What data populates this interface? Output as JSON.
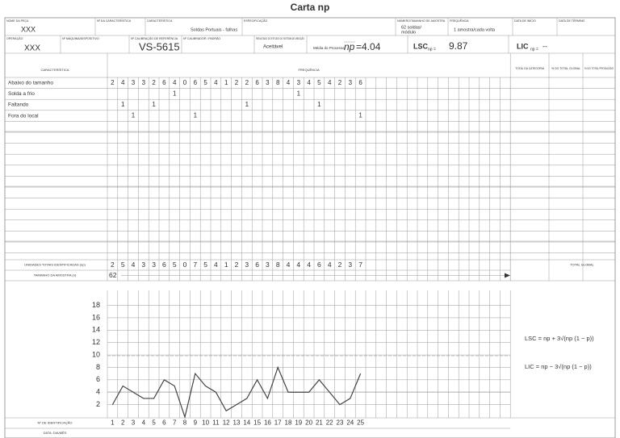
{
  "title": "Carta np",
  "header": {
    "part_name": {
      "label": "NOME DA PEÇA",
      "value": "XXX"
    },
    "char_no": {
      "label": "Nº DA CARACTERÍSTICA"
    },
    "characteristic": {
      "label": "CARACTERÍSTICA",
      "value": "Soldas Portuais - falhas"
    },
    "spec": {
      "label": "ESPECIFICAÇÃO"
    },
    "sample": {
      "label": "NÚMERO/TAMANHO DE AMOSTRA",
      "value": [
        "62 soldas/",
        "módulo"
      ]
    },
    "frequency": {
      "label": "FREQUÊNCIA",
      "value": "1 amostra/cada volta"
    },
    "start": {
      "label": "DATA DE INÍCIO"
    },
    "end": {
      "label": "DATA DE TÉRMINO"
    },
    "operation": {
      "label": "OPERAÇÃO",
      "value": "XXX"
    },
    "machine": {
      "label": "Nº MÁQUINA/DISPOSITIVO"
    },
    "gauge": {
      "label": "Nº CALIBRADOR / PADRÃO",
      "value": "VS-5615"
    },
    "calib": {
      "label": "Nº CALIBRAÇÃO DE REFERÊNCIA"
    },
    "msa": {
      "label": "RESULTADO DO ESTUDO DO SISTEMA DE MEDIÇÃO",
      "value": "Aceitável"
    },
    "mean": {
      "label": "Média do Processo",
      "symbol": "np",
      "value": {
        "value": 4.04,
        "label": "=4.04"
      }
    },
    "ucl": {
      "label": "LSC",
      "sub": "np =",
      "value": 9.87
    },
    "lcl": {
      "label": "LIC",
      "sub": "np =",
      "value": "--"
    }
  },
  "table": {
    "columns": [
      "CARACTERÍSTICA",
      "FREQUÊNCIA",
      "TOTAL DA CATEGORIA",
      "% DO TOTAL GLOBAL",
      "% DO TOTAL PRODUZIDO"
    ],
    "rows": [
      {
        "name": "Abaixo do tamanho",
        "counts": [
          2,
          4,
          3,
          3,
          2,
          6,
          4,
          0,
          6,
          5,
          4,
          1,
          2,
          2,
          6,
          3,
          8,
          4,
          3,
          4,
          5,
          4,
          2,
          3,
          6
        ]
      },
      {
        "name": "Solda a frio",
        "counts": [
          null,
          null,
          null,
          null,
          null,
          null,
          1,
          null,
          null,
          null,
          null,
          null,
          null,
          null,
          null,
          null,
          null,
          null,
          1,
          null,
          null,
          null,
          null,
          null,
          null
        ]
      },
      {
        "name": "Faltando",
        "counts": [
          null,
          1,
          null,
          null,
          1,
          null,
          null,
          null,
          null,
          null,
          null,
          null,
          null,
          1,
          null,
          null,
          null,
          null,
          null,
          null,
          1,
          null,
          null,
          null,
          null
        ]
      },
      {
        "name": "Fora do local",
        "counts": [
          null,
          null,
          1,
          null,
          null,
          null,
          null,
          null,
          1,
          null,
          null,
          null,
          null,
          null,
          null,
          null,
          null,
          null,
          null,
          null,
          null,
          null,
          null,
          null,
          1
        ]
      }
    ],
    "totals": {
      "label": "UNIDADES TOTAIS IDENTIFICADAS (np)",
      "values": [
        2,
        5,
        4,
        3,
        3,
        6,
        5,
        0,
        7,
        5,
        4,
        1,
        2,
        3,
        6,
        3,
        8,
        4,
        4,
        4,
        6,
        4,
        2,
        3,
        7
      ]
    },
    "sample_size": {
      "label": "TAMANHO DA AMOSTRA (n)",
      "value": 62
    },
    "total_global": "TOTAL GLOBAL"
  },
  "formulas": {
    "ucl": "LSC = np + 3√(np (1 − p))",
    "lcl": "LIC = np − 3√(np (1 − p))"
  },
  "chart_data": {
    "type": "line",
    "x": [
      1,
      2,
      3,
      4,
      5,
      6,
      7,
      8,
      9,
      10,
      11,
      12,
      13,
      14,
      15,
      16,
      17,
      18,
      19,
      20,
      21,
      22,
      23,
      24,
      25
    ],
    "x_label": "Nº DE IDENTIFICAÇÃO",
    "date_label": "DATA: DIA/MÊS",
    "values": [
      2,
      5,
      4,
      3,
      3,
      6,
      5,
      0,
      7,
      5,
      4,
      1,
      2,
      3,
      6,
      3,
      8,
      4,
      4,
      4,
      6,
      4,
      2,
      3,
      7
    ],
    "ylim": [
      0,
      19.5
    ],
    "yticks": [
      2,
      4,
      6,
      8,
      10,
      12,
      14,
      16,
      18
    ],
    "color": "#444"
  }
}
